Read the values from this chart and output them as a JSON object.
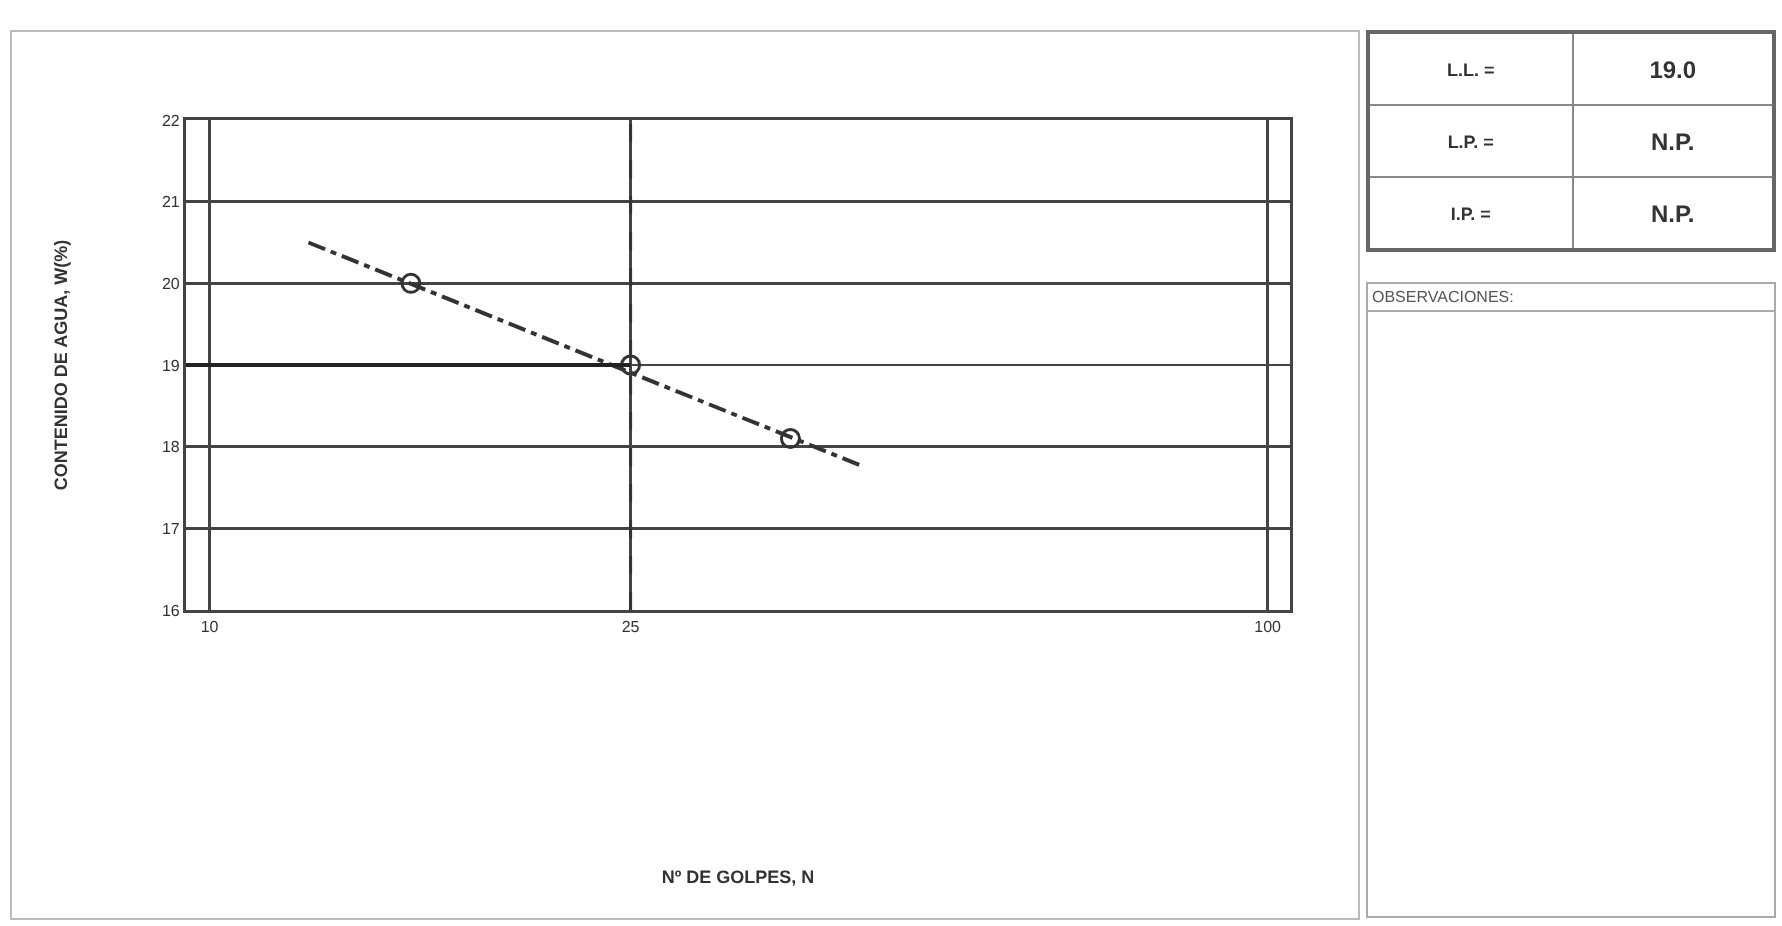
{
  "chart_data": [
    {
      "type": "scatter",
      "xlabel": "Nº DE GOLPES, N",
      "ylabel": "CONTENIDO DE AGUA, W(%)",
      "log": "x",
      "xlim": [
        9.5,
        105
      ],
      "xticks": [
        10,
        25,
        100
      ],
      "ylim": [
        16,
        22
      ],
      "yticks": [
        16,
        17,
        18,
        19,
        20,
        21,
        22
      ],
      "grid": true,
      "marker": "circle",
      "x": [
        15.5,
        25,
        35.4
      ],
      "series": [
        {
          "color": "#333333",
          "values": [
            20,
            19,
            18.1
          ]
        },
        {
          "type": "line",
          "color": "#333333",
          "line_style": "dashed",
          "marker": "none",
          "x": [
            12.4,
            41.6
          ],
          "values": [
            20.5,
            17.75
          ]
        },
        {
          "type": "line",
          "color": "#222222",
          "line_style": "solid",
          "marker": "none",
          "x": [
            9.5,
            25
          ],
          "values": [
            19,
            19
          ]
        }
      ],
      "ref_lines": [
        {
          "axis": "x",
          "value": 25,
          "color": "#333333",
          "line_style": "dashed"
        }
      ]
    },
    {
      "type": "other",
      "annotations": [
        "L.L. =",
        "19.0",
        "L.P. =",
        "N.P.",
        "I.P. =",
        "N.P.",
        "OBSERVACIONES:"
      ]
    }
  ]
}
